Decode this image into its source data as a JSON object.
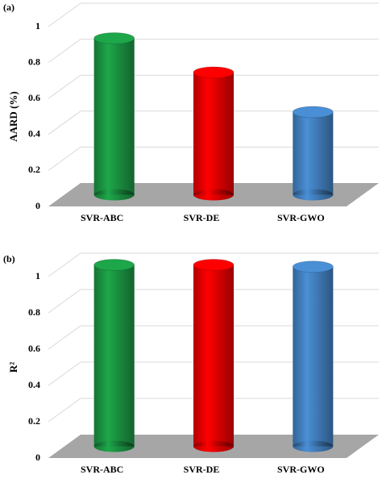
{
  "chart_data": [
    {
      "type": "bar",
      "panel_label": "(a)",
      "ylabel": "AARD (%)",
      "categories": [
        "SVR-ABC",
        "SVR-DE",
        "SVR-GWO"
      ],
      "values": [
        0.87,
        0.68,
        0.46
      ],
      "colors": [
        "#1ea64a",
        "#ff0000",
        "#4a8fd6"
      ],
      "ylim": [
        0,
        1
      ],
      "yticks": [
        0,
        0.2,
        0.4,
        0.6,
        0.8,
        1
      ],
      "grid": true
    },
    {
      "type": "bar",
      "panel_label": "(b)",
      "ylabel": "R²",
      "categories": [
        "SVR-ABC",
        "SVR-DE",
        "SVR-GWO"
      ],
      "values": [
        1,
        1,
        0.99
      ],
      "colors": [
        "#1ea64a",
        "#ff0000",
        "#4a8fd6"
      ],
      "ylim": [
        0,
        1
      ],
      "yticks": [
        0,
        0.2,
        0.4,
        0.6,
        0.8,
        1
      ],
      "grid": true
    }
  ]
}
